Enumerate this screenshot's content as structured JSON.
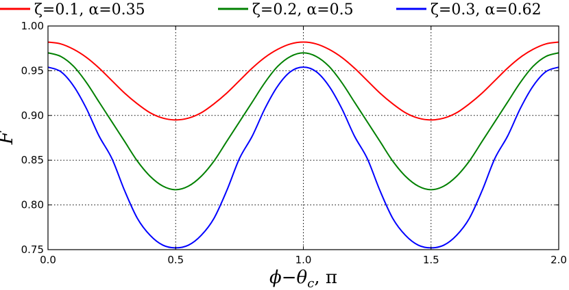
{
  "chart_data": {
    "type": "line",
    "xlabel": "ϕ−θc, π",
    "xlabel_parts": {
      "main": "ϕ−θ",
      "sub": "c",
      "rest": ", π"
    },
    "ylabel": "F",
    "xlim": [
      0.0,
      2.0
    ],
    "ylim": [
      0.75,
      1.0
    ],
    "xticks": [
      "0.0",
      "0.5",
      "1.0",
      "1.5",
      "2.0"
    ],
    "yticks": [
      "0.75",
      "0.80",
      "0.85",
      "0.90",
      "0.95",
      "1.00"
    ],
    "grid": true,
    "legend_position": "top",
    "x": [
      0.0,
      0.05,
      0.1,
      0.15,
      0.2,
      0.25,
      0.3,
      0.35,
      0.4,
      0.45,
      0.5,
      0.55,
      0.6,
      0.65,
      0.7,
      0.75,
      0.8,
      0.85,
      0.9,
      0.95,
      1.0,
      1.05,
      1.1,
      1.15,
      1.2,
      1.25,
      1.3,
      1.35,
      1.4,
      1.45,
      1.5,
      1.55,
      1.6,
      1.65,
      1.7,
      1.75,
      1.8,
      1.85,
      1.9,
      1.95,
      2.0
    ],
    "series": [
      {
        "name": "ζ=0.1, α=0.35",
        "color": "#ff0000",
        "values": [
          0.982,
          0.98,
          0.974,
          0.965,
          0.953,
          0.939,
          0.925,
          0.913,
          0.903,
          0.897,
          0.895,
          0.897,
          0.903,
          0.913,
          0.925,
          0.939,
          0.953,
          0.965,
          0.974,
          0.98,
          0.982,
          0.98,
          0.974,
          0.965,
          0.953,
          0.939,
          0.925,
          0.913,
          0.903,
          0.897,
          0.895,
          0.897,
          0.903,
          0.913,
          0.925,
          0.939,
          0.953,
          0.965,
          0.974,
          0.98,
          0.982
        ]
      },
      {
        "name": "ζ=0.2, α=0.5",
        "color": "#008000",
        "values": [
          0.97,
          0.966,
          0.955,
          0.937,
          0.915,
          0.893,
          0.871,
          0.849,
          0.832,
          0.821,
          0.817,
          0.821,
          0.832,
          0.849,
          0.871,
          0.893,
          0.915,
          0.937,
          0.955,
          0.966,
          0.97,
          0.966,
          0.955,
          0.937,
          0.915,
          0.893,
          0.871,
          0.849,
          0.832,
          0.821,
          0.817,
          0.821,
          0.832,
          0.849,
          0.871,
          0.893,
          0.915,
          0.937,
          0.955,
          0.966,
          0.97
        ]
      },
      {
        "name": "ζ=0.3, α=0.62",
        "color": "#0000ff",
        "values": [
          0.954,
          0.949,
          0.933,
          0.908,
          0.877,
          0.852,
          0.816,
          0.785,
          0.766,
          0.755,
          0.752,
          0.755,
          0.766,
          0.785,
          0.816,
          0.852,
          0.877,
          0.908,
          0.933,
          0.949,
          0.954,
          0.949,
          0.933,
          0.908,
          0.877,
          0.852,
          0.816,
          0.785,
          0.766,
          0.755,
          0.752,
          0.755,
          0.766,
          0.785,
          0.816,
          0.852,
          0.877,
          0.908,
          0.933,
          0.949,
          0.954
        ]
      }
    ]
  }
}
